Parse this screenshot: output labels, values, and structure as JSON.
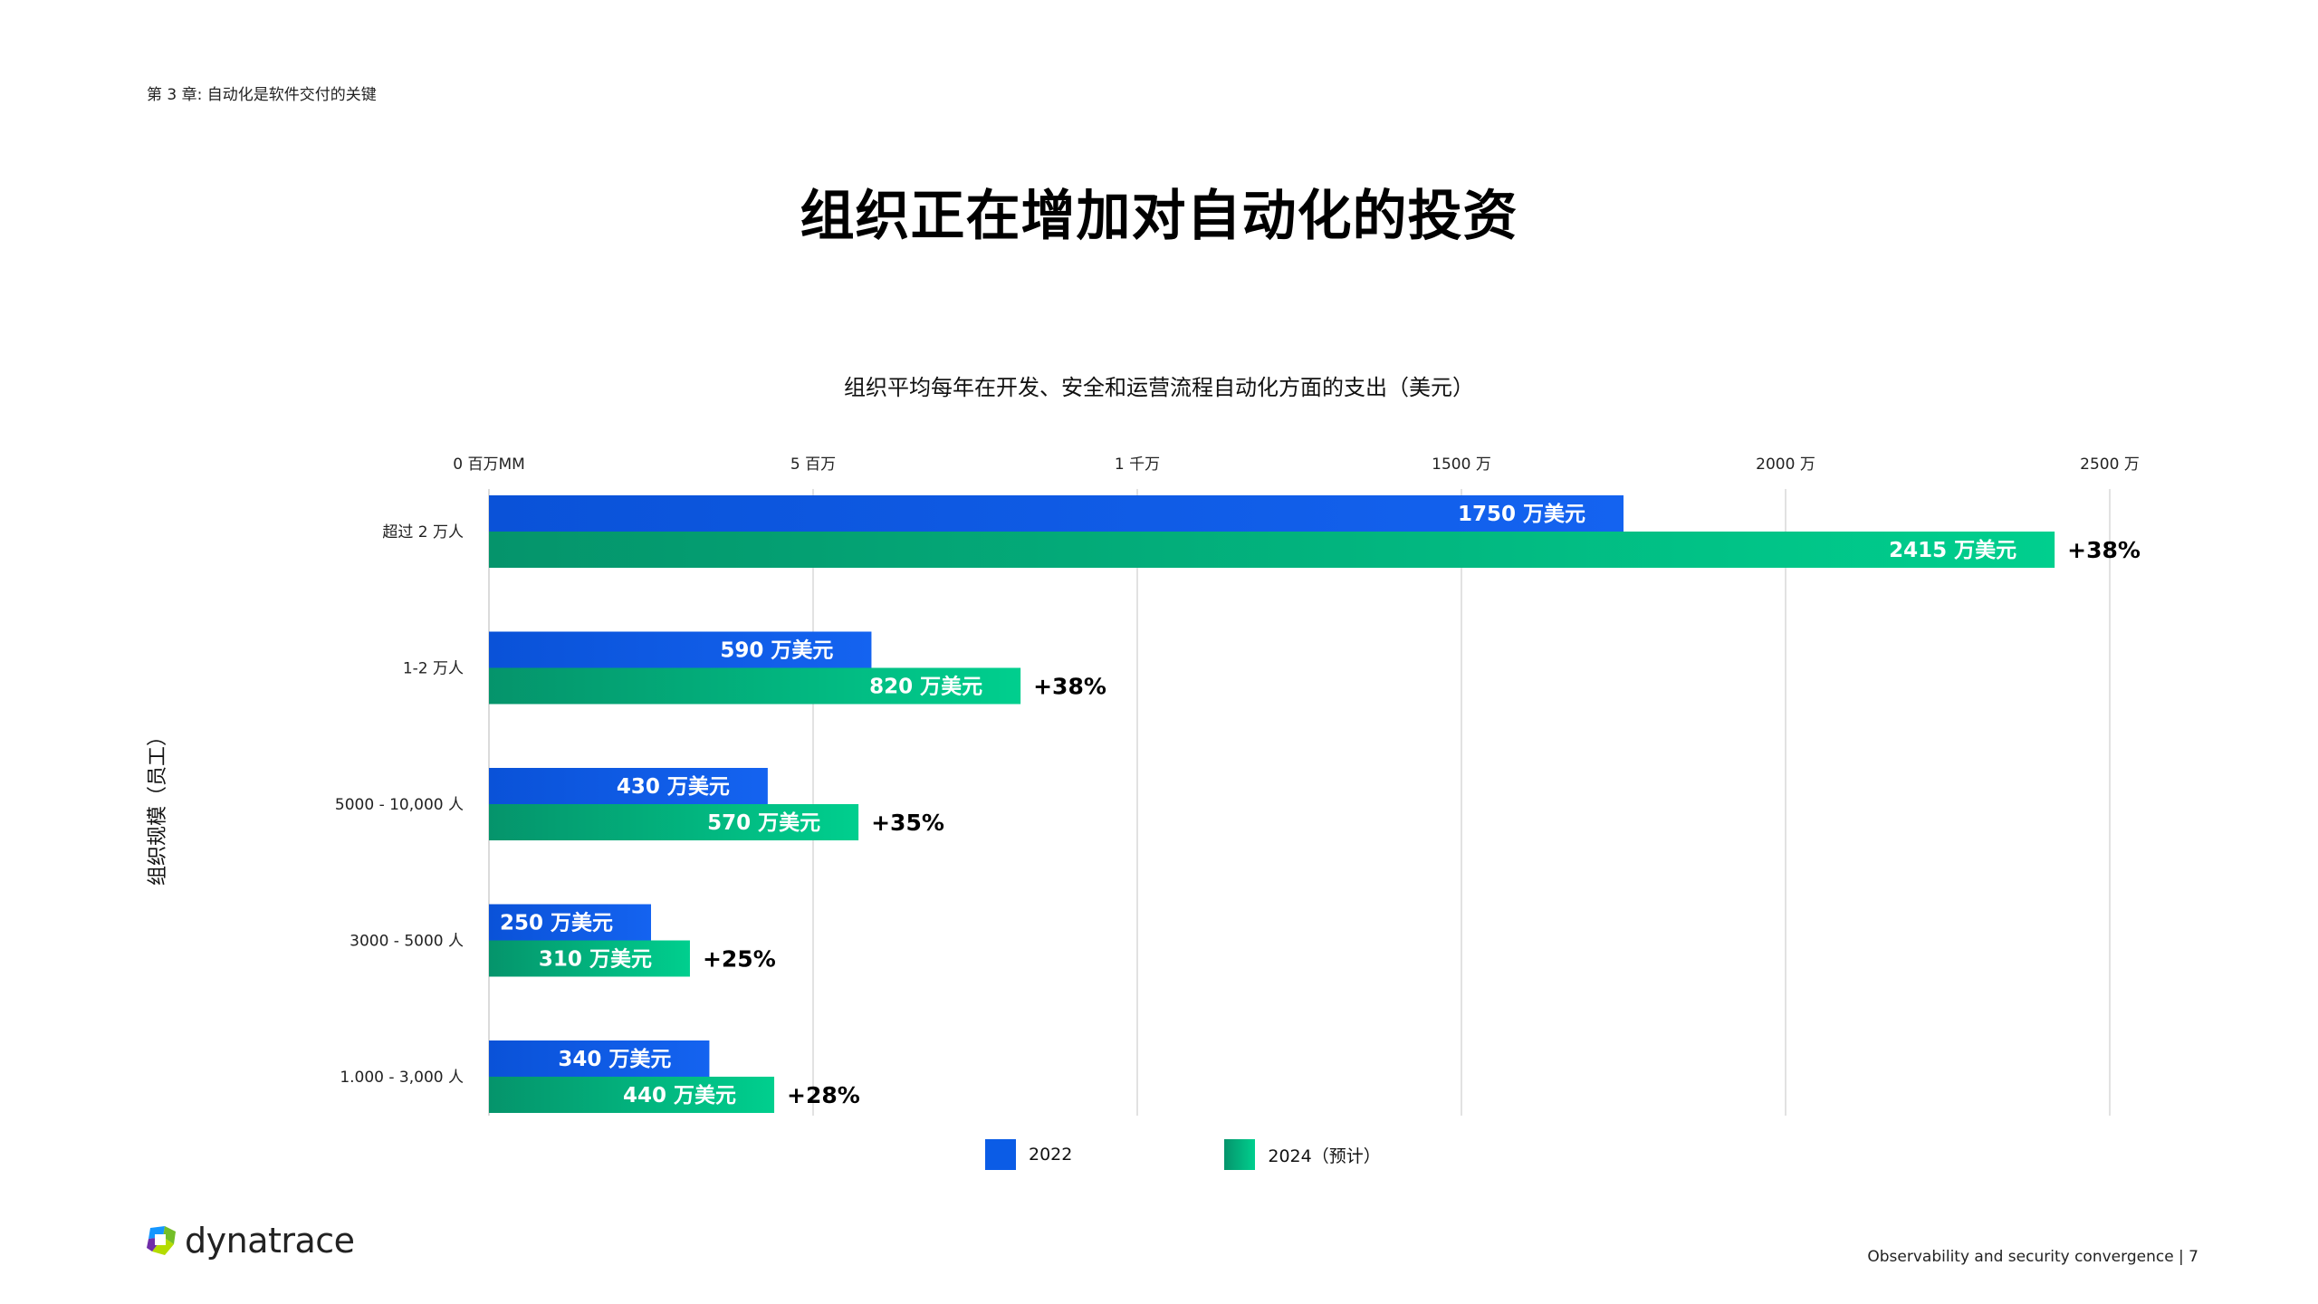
{
  "header": {
    "chapter": "第 3 章: 自动化是软件交付的关键",
    "title": "组织正在增加对自动化的投资"
  },
  "footer": {
    "brand": "dynatrace",
    "caption": "Observability and security convergence | 7"
  },
  "colors": {
    "series_2022": "#0b5ce6",
    "series_2024_start": "#05946b",
    "series_2024_end": "#00cf8e",
    "gridline": "#d9d9d9"
  },
  "chart_data": {
    "type": "bar",
    "orientation": "horizontal",
    "title": "组织平均每年在开发、安全和运营流程自动化方面的支出（美元）",
    "ylabel": "组织规模（员工）",
    "xlim": [
      0,
      25
    ],
    "x_ticks": [
      0,
      5,
      10,
      15,
      20,
      25
    ],
    "x_tick_labels": [
      "0 百万MM",
      "5 百万",
      "1 千万",
      "1500 万",
      "2000 万",
      "2500 万"
    ],
    "categories": [
      "超过 2 万人",
      "1-2 万人",
      "5000 - 10,000 人",
      "3000 - 5000 人",
      "1.000 - 3,000 人"
    ],
    "series": [
      {
        "name": "2022",
        "values": [
          17.5,
          5.9,
          4.3,
          2.5,
          3.4
        ],
        "labels": [
          "1750 万美元",
          "590 万美元",
          "430 万美元",
          "250 万美元",
          "340 万美元"
        ]
      },
      {
        "name": "2024（预计）",
        "values": [
          24.15,
          8.2,
          5.7,
          3.1,
          4.4
        ],
        "labels": [
          "2415 万美元",
          "820 万美元",
          "570 万美元",
          "310 万美元",
          "440 万美元"
        ]
      }
    ],
    "growth_labels": [
      "+38%",
      "+38%",
      "+35%",
      "+25%",
      "+28%"
    ],
    "grid": true,
    "legend": "bottom"
  }
}
